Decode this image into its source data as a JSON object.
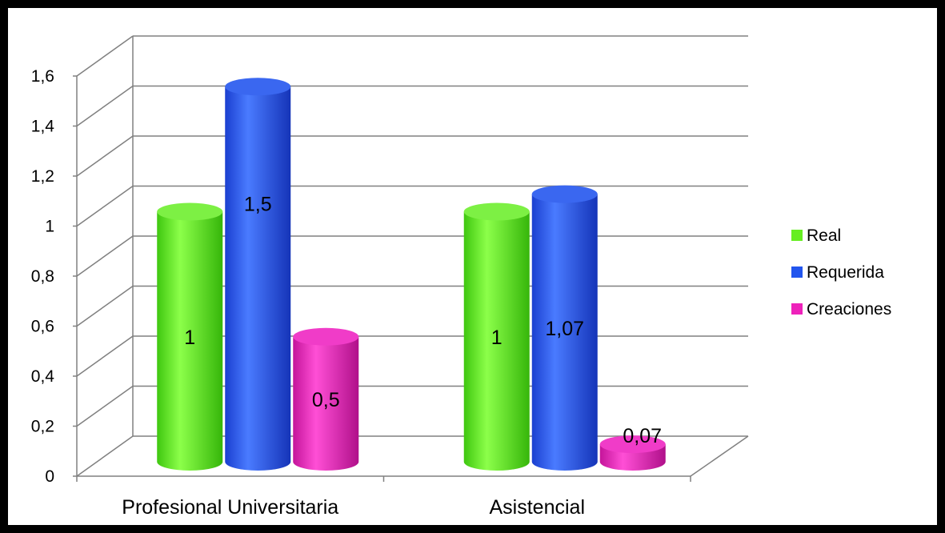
{
  "chart_data": {
    "type": "bar",
    "categories": [
      "Profesional Universitaria",
      "Asistencial"
    ],
    "series": [
      {
        "name": "Real",
        "values": [
          1,
          1
        ],
        "labels": [
          "1",
          "1"
        ],
        "color": "#66ee22"
      },
      {
        "name": "Requerida",
        "values": [
          1.5,
          1.07
        ],
        "labels": [
          "1,5",
          "1,07"
        ],
        "color": "#2255ee"
      },
      {
        "name": "Creaciones",
        "values": [
          0.5,
          0.07
        ],
        "labels": [
          "0,5",
          "0,07"
        ],
        "color": "#ee22bb"
      }
    ],
    "ylim": [
      0,
      1.6
    ],
    "yticks": [
      0,
      0.2,
      0.4,
      0.6,
      0.8,
      1,
      1.2,
      1.4,
      1.6
    ],
    "ytick_labels": [
      "0",
      "0,2",
      "0,4",
      "0,6",
      "0,8",
      "1",
      "1,2",
      "1,4",
      "1,6"
    ],
    "grid": true,
    "legend_position": "right",
    "three_d": true
  }
}
